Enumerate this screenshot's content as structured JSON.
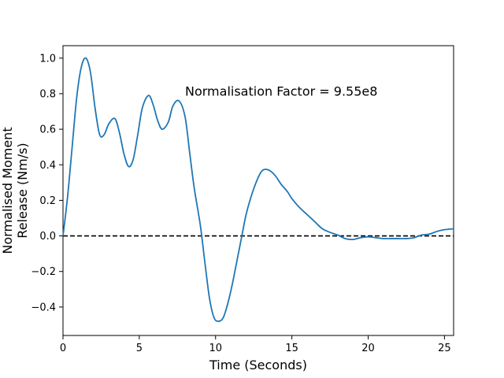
{
  "chart_data": {
    "type": "line",
    "title": "",
    "xlabel": "Time (Seconds)",
    "ylabel": [
      "Normalised Moment",
      "Release (Nm/s)"
    ],
    "xlim": [
      0,
      25.6
    ],
    "ylim": [
      -0.56,
      1.07
    ],
    "x_ticks": [
      0,
      5,
      10,
      15,
      20,
      25
    ],
    "x_tick_labels": [
      "0",
      "5",
      "10",
      "15",
      "20",
      "25"
    ],
    "y_ticks": [
      -0.4,
      -0.2,
      0.0,
      0.2,
      0.4,
      0.6,
      0.8,
      1.0
    ],
    "y_tick_labels": [
      "−0.4",
      "−0.2",
      "0.0",
      "0.2",
      "0.4",
      "0.6",
      "0.8",
      "1.0"
    ],
    "grid": false,
    "annotation": {
      "text": "Normalisation Factor = 9.55e8",
      "x": 8.0,
      "y": 0.815
    },
    "reference_line": {
      "y": 0,
      "style": "dashed",
      "color": "#000000"
    },
    "series": [
      {
        "color": "#1f77b4",
        "x": [
          0,
          0.3,
          0.6,
          0.9,
          1.2,
          1.5,
          1.8,
          2.1,
          2.4,
          2.7,
          3.0,
          3.4,
          3.7,
          4.0,
          4.3,
          4.6,
          4.9,
          5.2,
          5.6,
          5.9,
          6.2,
          6.5,
          6.9,
          7.2,
          7.6,
          8.0,
          8.3,
          8.6,
          9.0,
          9.3,
          9.6,
          9.9,
          10.2,
          10.5,
          10.8,
          11.1,
          11.4,
          11.7,
          12.0,
          12.4,
          12.8,
          13.1,
          13.5,
          13.9,
          14.3,
          14.7,
          15.0,
          15.5,
          16.0,
          16.5,
          17.0,
          17.5,
          18.0,
          18.5,
          19.0,
          19.5,
          20.0,
          20.5,
          21.0,
          21.5,
          22.0,
          22.5,
          23.0,
          23.5,
          24.0,
          24.5,
          25.0,
          25.6
        ],
        "y": [
          0.0,
          0.22,
          0.5,
          0.78,
          0.95,
          1.0,
          0.92,
          0.72,
          0.57,
          0.57,
          0.63,
          0.66,
          0.58,
          0.46,
          0.39,
          0.43,
          0.57,
          0.72,
          0.79,
          0.74,
          0.65,
          0.6,
          0.64,
          0.73,
          0.76,
          0.67,
          0.47,
          0.27,
          0.06,
          -0.15,
          -0.35,
          -0.46,
          -0.48,
          -0.46,
          -0.38,
          -0.27,
          -0.14,
          -0.01,
          0.12,
          0.24,
          0.33,
          0.37,
          0.37,
          0.34,
          0.29,
          0.25,
          0.21,
          0.16,
          0.12,
          0.08,
          0.04,
          0.02,
          0.005,
          -0.015,
          -0.02,
          -0.01,
          -0.005,
          -0.01,
          -0.015,
          -0.015,
          -0.015,
          -0.015,
          -0.01,
          0.005,
          0.01,
          0.025,
          0.035,
          0.04
        ]
      }
    ]
  }
}
